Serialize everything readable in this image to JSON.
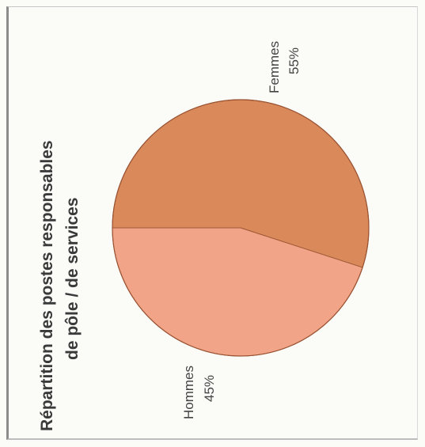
{
  "chart_data": {
    "type": "pie",
    "title_line1": "Répartition des postes responsables",
    "title_line2": "de pôle / de services",
    "slices": [
      {
        "label": "Femmes",
        "pct_label": "55%",
        "value": 55,
        "color": "#d9895a"
      },
      {
        "label": "Hommes",
        "pct_label": "45%",
        "value": 45,
        "color": "#f2a488"
      }
    ],
    "legend": "none",
    "rotated": true
  }
}
